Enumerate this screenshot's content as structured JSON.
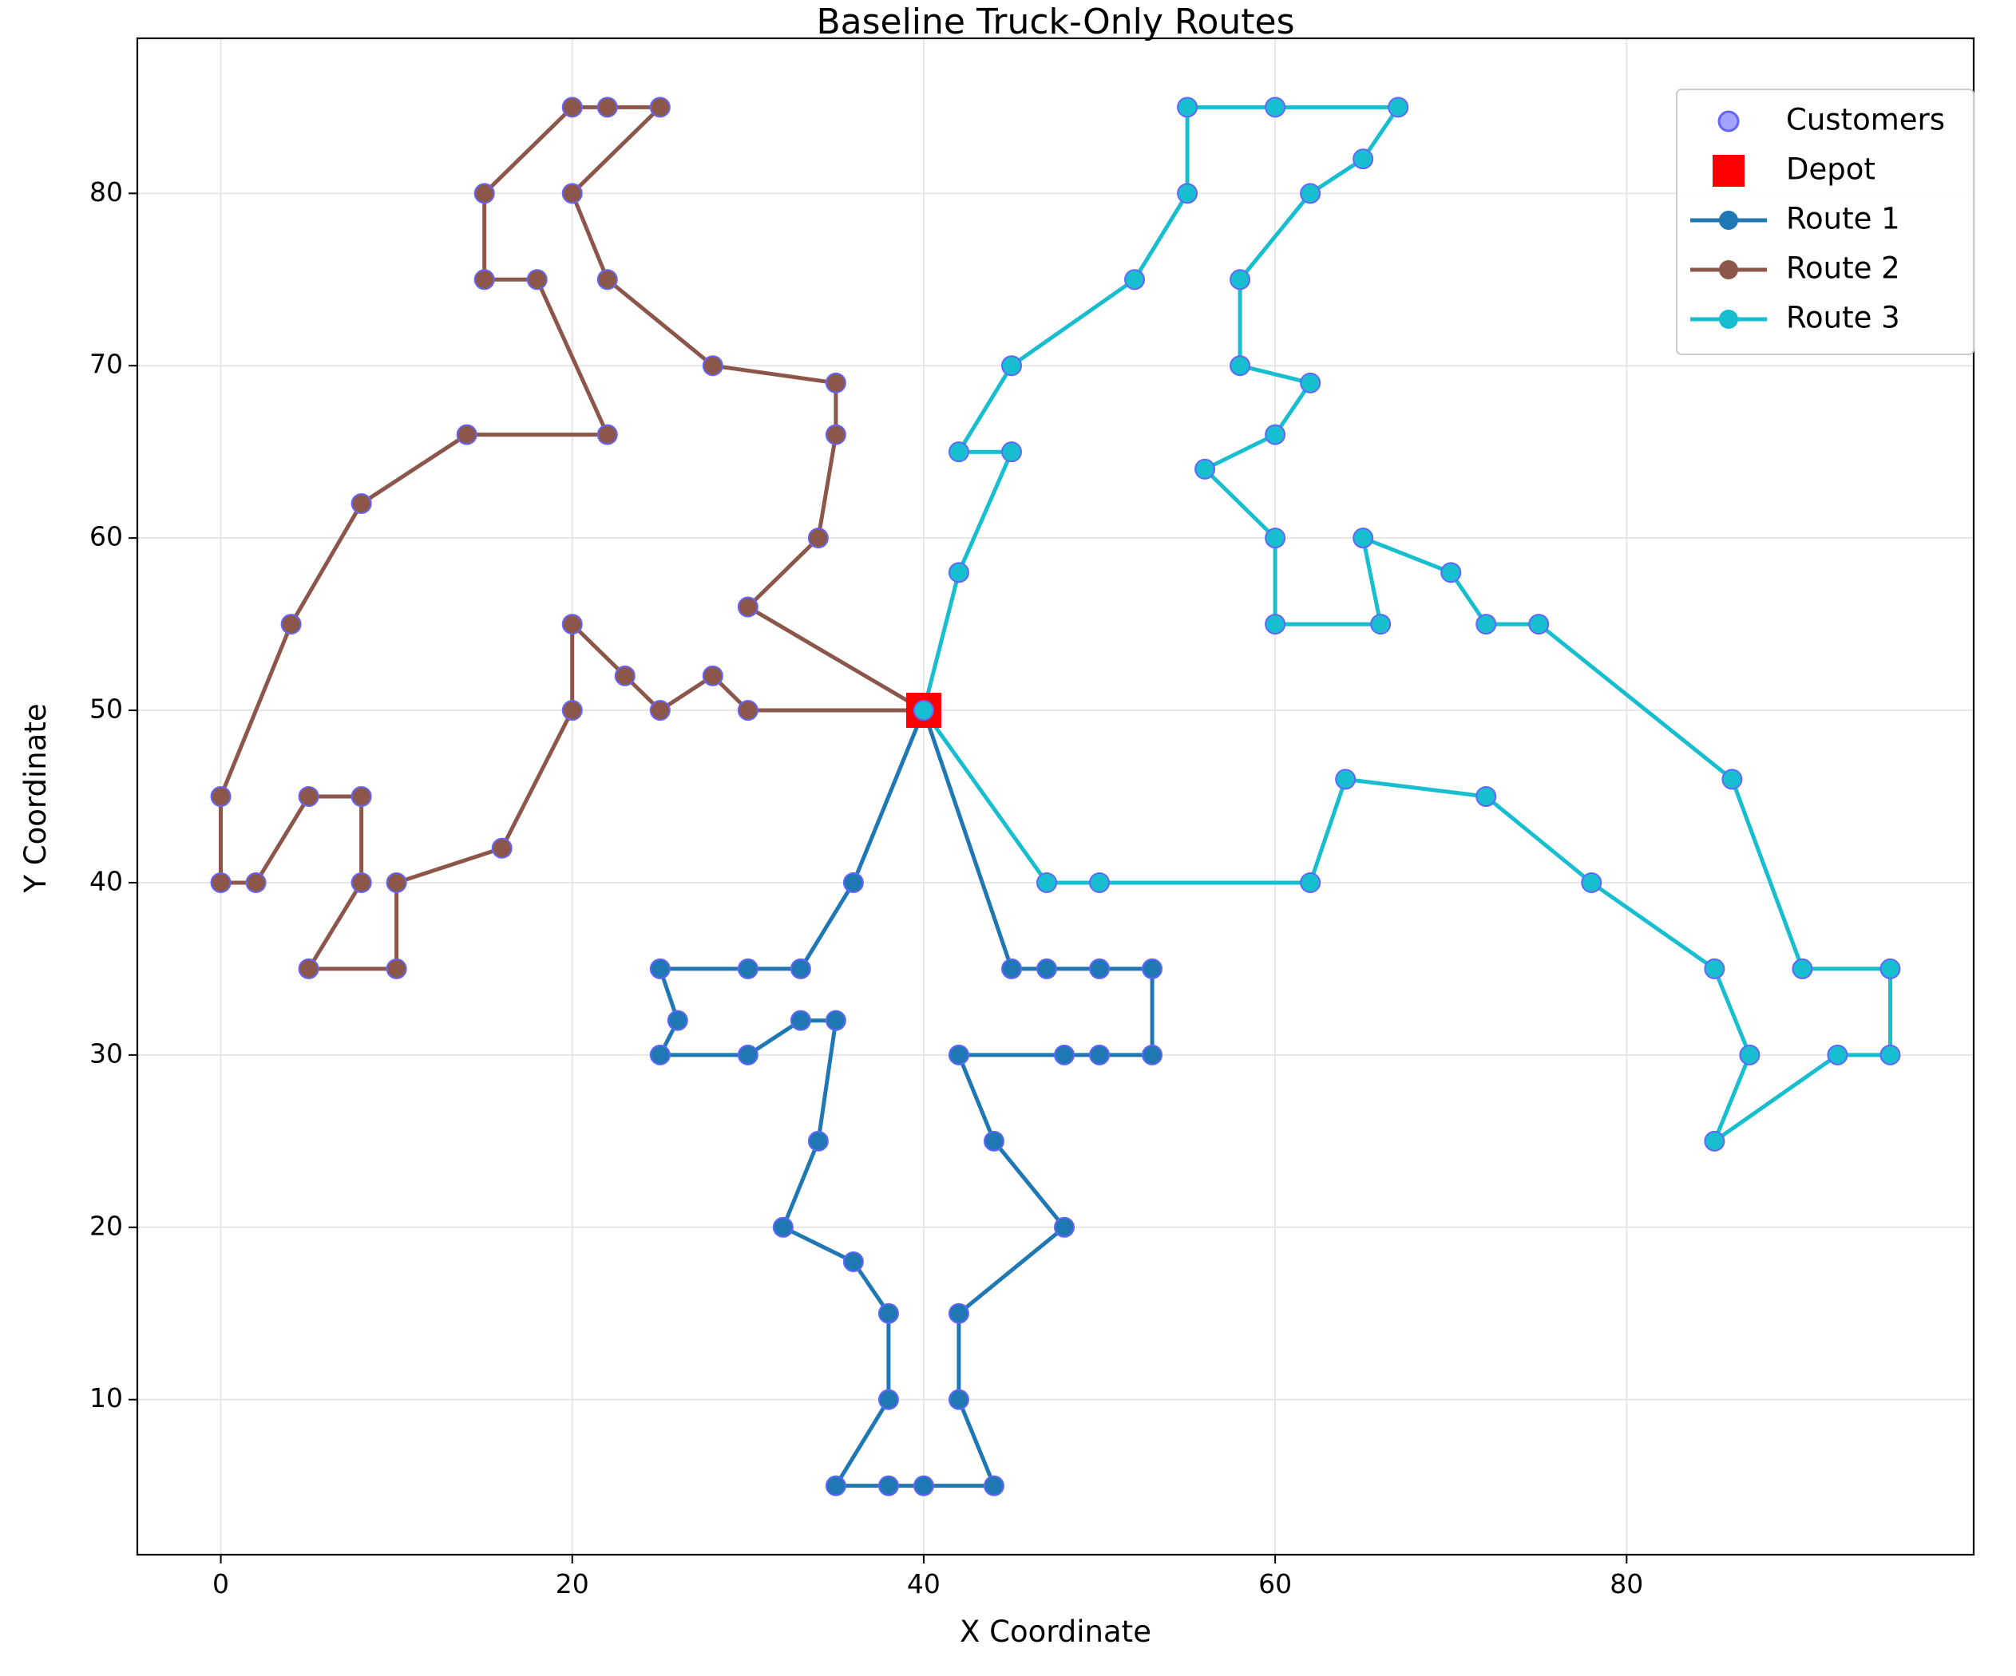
{
  "chart_data": {
    "type": "line",
    "title": "Baseline Truck-Only Routes",
    "xlabel": "X Coordinate",
    "ylabel": "Y Coordinate",
    "xlim": [
      -4.75,
      99.75
    ],
    "ylim": [
      1.0,
      89.0
    ],
    "xticks": [
      0,
      20,
      40,
      60,
      80
    ],
    "yticks": [
      10,
      20,
      30,
      40,
      50,
      60,
      70,
      80
    ],
    "grid": true,
    "legend_position": "top-right",
    "colors": {
      "customers": "#6464ff",
      "depot": "#ff0000",
      "route1": "#1f77b4",
      "route2": "#8c564b",
      "route3": "#17becf"
    },
    "legend": [
      {
        "label": "Customers",
        "kind": "scatter",
        "color": "#6464ff"
      },
      {
        "label": "Depot",
        "kind": "square",
        "color": "#ff0000"
      },
      {
        "label": "Route 1",
        "kind": "line",
        "color": "#1f77b4"
      },
      {
        "label": "Route 2",
        "kind": "line",
        "color": "#8c564b"
      },
      {
        "label": "Route 3",
        "kind": "line",
        "color": "#17becf"
      }
    ],
    "depot": {
      "x": 40,
      "y": 50
    },
    "series": [
      {
        "name": "Route 1",
        "color": "#1f77b4",
        "points": [
          [
            40,
            50
          ],
          [
            36,
            40
          ],
          [
            33,
            35
          ],
          [
            30,
            35
          ],
          [
            25,
            35
          ],
          [
            26,
            32
          ],
          [
            25,
            30
          ],
          [
            30,
            30
          ],
          [
            33,
            32
          ],
          [
            35,
            32
          ],
          [
            34,
            25
          ],
          [
            32,
            20
          ],
          [
            36,
            18
          ],
          [
            38,
            15
          ],
          [
            38,
            10
          ],
          [
            35,
            5
          ],
          [
            38,
            5
          ],
          [
            40,
            5
          ],
          [
            44,
            5
          ],
          [
            42,
            10
          ],
          [
            42,
            15
          ],
          [
            48,
            20
          ],
          [
            44,
            25
          ],
          [
            42,
            30
          ],
          [
            48,
            30
          ],
          [
            50,
            30
          ],
          [
            53,
            30
          ],
          [
            53,
            35
          ],
          [
            50,
            35
          ],
          [
            47,
            35
          ],
          [
            45,
            35
          ],
          [
            40,
            50
          ]
        ]
      },
      {
        "name": "Route 2",
        "color": "#8c564b",
        "points": [
          [
            40,
            50
          ],
          [
            30,
            56
          ],
          [
            34,
            60
          ],
          [
            35,
            66
          ],
          [
            35,
            69
          ],
          [
            28,
            70
          ],
          [
            22,
            75
          ],
          [
            20,
            80
          ],
          [
            25,
            85
          ],
          [
            22,
            85
          ],
          [
            20,
            85
          ],
          [
            15,
            80
          ],
          [
            15,
            75
          ],
          [
            18,
            75
          ],
          [
            22,
            66
          ],
          [
            14,
            66
          ],
          [
            8,
            62
          ],
          [
            4,
            55
          ],
          [
            0,
            45
          ],
          [
            0,
            40
          ],
          [
            2,
            40
          ],
          [
            5,
            45
          ],
          [
            8,
            45
          ],
          [
            8,
            40
          ],
          [
            5,
            35
          ],
          [
            10,
            35
          ],
          [
            10,
            40
          ],
          [
            16,
            42
          ],
          [
            20,
            50
          ],
          [
            20,
            55
          ],
          [
            23,
            52
          ],
          [
            25,
            50
          ],
          [
            28,
            52
          ],
          [
            30,
            50
          ],
          [
            40,
            50
          ]
        ]
      },
      {
        "name": "Route 3",
        "color": "#17becf",
        "points": [
          [
            40,
            50
          ],
          [
            42,
            58
          ],
          [
            45,
            65
          ],
          [
            42,
            65
          ],
          [
            45,
            70
          ],
          [
            52,
            75
          ],
          [
            55,
            80
          ],
          [
            55,
            85
          ],
          [
            60,
            85
          ],
          [
            67,
            85
          ],
          [
            65,
            82
          ],
          [
            62,
            80
          ],
          [
            58,
            75
          ],
          [
            58,
            70
          ],
          [
            62,
            69
          ],
          [
            60,
            66
          ],
          [
            56,
            64
          ],
          [
            60,
            60
          ],
          [
            60,
            55
          ],
          [
            66,
            55
          ],
          [
            65,
            60
          ],
          [
            70,
            58
          ],
          [
            72,
            55
          ],
          [
            75,
            55
          ],
          [
            86,
            46
          ],
          [
            90,
            35
          ],
          [
            95,
            35
          ],
          [
            95,
            30
          ],
          [
            92,
            30
          ],
          [
            85,
            25
          ],
          [
            87,
            30
          ],
          [
            85,
            35
          ],
          [
            78,
            40
          ],
          [
            72,
            45
          ],
          [
            64,
            46
          ],
          [
            62,
            40
          ],
          [
            50,
            40
          ],
          [
            47,
            40
          ],
          [
            40,
            50
          ]
        ]
      }
    ]
  }
}
